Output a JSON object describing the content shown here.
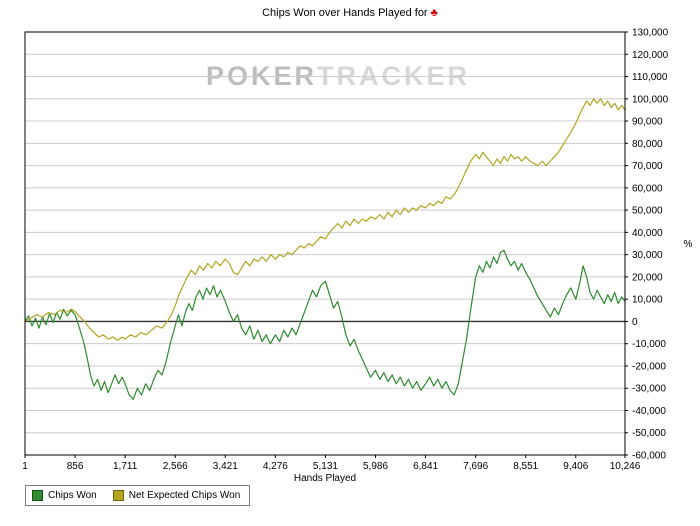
{
  "header": {
    "title": "Chips Won over Hands Played for",
    "suit_symbol": "♣",
    "suit_color": "#cc0000"
  },
  "watermark": {
    "bold": "POKER",
    "light": "TRACKER"
  },
  "x_axis": {
    "label": "Hands Played",
    "ticks": [
      "1",
      "856",
      "1,711",
      "2,566",
      "3,421",
      "4,276",
      "5,131",
      "5,986",
      "6,841",
      "7,696",
      "8,551",
      "9,406",
      "10,246"
    ]
  },
  "y_axis": {
    "unit": "%",
    "min": -60000,
    "max": 130000,
    "step": 10000
  },
  "legend": [
    {
      "label": "Chips Won",
      "color": "#2e8b2e",
      "border": "#145214"
    },
    {
      "label": "Net Expected Chips Won",
      "color": "#b5a41e",
      "border": "#6b6212"
    }
  ],
  "colors": {
    "grid": "#cccccc",
    "zero_line": "#333333",
    "frame": "#000000"
  },
  "chart_data": {
    "type": "line",
    "title": "Chips Won over Hands Played for ♣",
    "xlabel": "Hands Played",
    "ylabel": "%",
    "xlim": [
      1,
      10246
    ],
    "ylim": [
      -60000,
      130000
    ],
    "y_step": 10000,
    "x_ticks": [
      1,
      856,
      1711,
      2566,
      3421,
      4276,
      5131,
      5986,
      6841,
      7696,
      8551,
      9406,
      10246
    ],
    "grid": "horizontal",
    "legend_position": "bottom-left",
    "series": [
      {
        "name": "Chips Won",
        "color": "#2e8b2e",
        "points": [
          [
            1,
            0
          ],
          [
            60,
            2500
          ],
          [
            120,
            -2000
          ],
          [
            180,
            1500
          ],
          [
            240,
            -3000
          ],
          [
            300,
            2000
          ],
          [
            360,
            -1500
          ],
          [
            420,
            3500
          ],
          [
            480,
            -500
          ],
          [
            540,
            4000
          ],
          [
            600,
            1000
          ],
          [
            660,
            5500
          ],
          [
            720,
            2500
          ],
          [
            790,
            5000
          ],
          [
            856,
            3000
          ],
          [
            920,
            -2000
          ],
          [
            1000,
            -9000
          ],
          [
            1060,
            -16000
          ],
          [
            1120,
            -24000
          ],
          [
            1180,
            -29000
          ],
          [
            1240,
            -26000
          ],
          [
            1300,
            -31000
          ],
          [
            1360,
            -27000
          ],
          [
            1420,
            -32000
          ],
          [
            1480,
            -28000
          ],
          [
            1540,
            -24000
          ],
          [
            1600,
            -28000
          ],
          [
            1660,
            -25000
          ],
          [
            1711,
            -28000
          ],
          [
            1780,
            -33000
          ],
          [
            1850,
            -35000
          ],
          [
            1920,
            -30000
          ],
          [
            1990,
            -33000
          ],
          [
            2060,
            -28000
          ],
          [
            2130,
            -31000
          ],
          [
            2200,
            -26000
          ],
          [
            2270,
            -22000
          ],
          [
            2340,
            -24000
          ],
          [
            2410,
            -18000
          ],
          [
            2480,
            -10000
          ],
          [
            2566,
            -2000
          ],
          [
            2620,
            3000
          ],
          [
            2680,
            -2000
          ],
          [
            2740,
            4000
          ],
          [
            2800,
            8000
          ],
          [
            2860,
            5000
          ],
          [
            2920,
            11000
          ],
          [
            2980,
            14000
          ],
          [
            3040,
            10000
          ],
          [
            3100,
            15000
          ],
          [
            3160,
            12000
          ],
          [
            3220,
            16000
          ],
          [
            3280,
            11000
          ],
          [
            3340,
            14000
          ],
          [
            3421,
            9000
          ],
          [
            3490,
            4000
          ],
          [
            3560,
            0
          ],
          [
            3630,
            3000
          ],
          [
            3700,
            -3000
          ],
          [
            3770,
            -6000
          ],
          [
            3840,
            -2000
          ],
          [
            3910,
            -8000
          ],
          [
            3980,
            -4000
          ],
          [
            4050,
            -9000
          ],
          [
            4120,
            -6000
          ],
          [
            4190,
            -10000
          ],
          [
            4276,
            -6000
          ],
          [
            4350,
            -9000
          ],
          [
            4420,
            -4000
          ],
          [
            4490,
            -7000
          ],
          [
            4560,
            -3000
          ],
          [
            4630,
            -6000
          ],
          [
            4700,
            -1000
          ],
          [
            4770,
            4000
          ],
          [
            4840,
            9000
          ],
          [
            4910,
            14000
          ],
          [
            4980,
            11000
          ],
          [
            5050,
            16000
          ],
          [
            5131,
            18000
          ],
          [
            5200,
            12000
          ],
          [
            5270,
            6000
          ],
          [
            5340,
            9000
          ],
          [
            5410,
            2000
          ],
          [
            5480,
            -6000
          ],
          [
            5550,
            -11000
          ],
          [
            5620,
            -8000
          ],
          [
            5690,
            -13000
          ],
          [
            5760,
            -17000
          ],
          [
            5830,
            -21000
          ],
          [
            5900,
            -25000
          ],
          [
            5986,
            -22000
          ],
          [
            6060,
            -26000
          ],
          [
            6130,
            -23000
          ],
          [
            6200,
            -27000
          ],
          [
            6270,
            -24000
          ],
          [
            6340,
            -28000
          ],
          [
            6410,
            -25000
          ],
          [
            6480,
            -29000
          ],
          [
            6550,
            -26000
          ],
          [
            6620,
            -30000
          ],
          [
            6690,
            -27000
          ],
          [
            6760,
            -31000
          ],
          [
            6841,
            -28000
          ],
          [
            6910,
            -25000
          ],
          [
            6980,
            -29000
          ],
          [
            7050,
            -26000
          ],
          [
            7120,
            -30000
          ],
          [
            7190,
            -27000
          ],
          [
            7260,
            -31000
          ],
          [
            7330,
            -33000
          ],
          [
            7400,
            -28000
          ],
          [
            7470,
            -18000
          ],
          [
            7540,
            -8000
          ],
          [
            7610,
            5000
          ],
          [
            7696,
            20000
          ],
          [
            7760,
            25000
          ],
          [
            7820,
            22000
          ],
          [
            7880,
            27000
          ],
          [
            7940,
            24000
          ],
          [
            8000,
            29000
          ],
          [
            8060,
            26000
          ],
          [
            8120,
            31000
          ],
          [
            8180,
            32000
          ],
          [
            8240,
            28000
          ],
          [
            8300,
            25000
          ],
          [
            8360,
            27000
          ],
          [
            8420,
            23000
          ],
          [
            8480,
            26000
          ],
          [
            8551,
            22000
          ],
          [
            8620,
            19000
          ],
          [
            8690,
            15000
          ],
          [
            8760,
            11000
          ],
          [
            8830,
            8000
          ],
          [
            8900,
            5000
          ],
          [
            8970,
            2000
          ],
          [
            9040,
            6000
          ],
          [
            9110,
            3000
          ],
          [
            9180,
            8000
          ],
          [
            9250,
            12000
          ],
          [
            9320,
            15000
          ],
          [
            9406,
            10000
          ],
          [
            9470,
            17000
          ],
          [
            9530,
            25000
          ],
          [
            9590,
            20000
          ],
          [
            9650,
            13000
          ],
          [
            9710,
            10000
          ],
          [
            9770,
            14000
          ],
          [
            9830,
            11000
          ],
          [
            9890,
            8000
          ],
          [
            9950,
            12000
          ],
          [
            10010,
            9000
          ],
          [
            10070,
            13000
          ],
          [
            10130,
            8000
          ],
          [
            10190,
            11000
          ],
          [
            10246,
            9000
          ]
        ]
      },
      {
        "name": "Net Expected Chips Won",
        "color": "#b5a41e",
        "points": [
          [
            1,
            0
          ],
          [
            100,
            1500
          ],
          [
            200,
            3000
          ],
          [
            300,
            2000
          ],
          [
            400,
            4000
          ],
          [
            500,
            3000
          ],
          [
            600,
            5000
          ],
          [
            700,
            4000
          ],
          [
            790,
            5500
          ],
          [
            856,
            4500
          ],
          [
            940,
            2000
          ],
          [
            1020,
            0
          ],
          [
            1100,
            -3000
          ],
          [
            1180,
            -5000
          ],
          [
            1260,
            -7000
          ],
          [
            1340,
            -6000
          ],
          [
            1420,
            -8000
          ],
          [
            1500,
            -7000
          ],
          [
            1580,
            -8500
          ],
          [
            1660,
            -7000
          ],
          [
            1711,
            -8000
          ],
          [
            1800,
            -6000
          ],
          [
            1890,
            -7000
          ],
          [
            1980,
            -5000
          ],
          [
            2070,
            -6000
          ],
          [
            2160,
            -4000
          ],
          [
            2250,
            -2000
          ],
          [
            2340,
            -3000
          ],
          [
            2430,
            0
          ],
          [
            2500,
            3000
          ],
          [
            2566,
            7000
          ],
          [
            2630,
            12000
          ],
          [
            2700,
            16000
          ],
          [
            2770,
            20000
          ],
          [
            2840,
            23000
          ],
          [
            2910,
            21000
          ],
          [
            2980,
            25000
          ],
          [
            3050,
            23000
          ],
          [
            3120,
            26000
          ],
          [
            3190,
            24000
          ],
          [
            3260,
            27000
          ],
          [
            3330,
            25000
          ],
          [
            3421,
            28000
          ],
          [
            3490,
            26000
          ],
          [
            3560,
            22000
          ],
          [
            3630,
            21000
          ],
          [
            3700,
            24000
          ],
          [
            3770,
            27000
          ],
          [
            3840,
            25000
          ],
          [
            3910,
            28000
          ],
          [
            3980,
            27000
          ],
          [
            4050,
            29000
          ],
          [
            4120,
            27000
          ],
          [
            4200,
            30000
          ],
          [
            4276,
            28000
          ],
          [
            4350,
            30000
          ],
          [
            4420,
            29000
          ],
          [
            4490,
            31000
          ],
          [
            4560,
            30000
          ],
          [
            4630,
            32000
          ],
          [
            4700,
            34000
          ],
          [
            4770,
            33000
          ],
          [
            4840,
            35000
          ],
          [
            4910,
            34000
          ],
          [
            4980,
            36000
          ],
          [
            5050,
            38000
          ],
          [
            5131,
            37000
          ],
          [
            5200,
            40000
          ],
          [
            5270,
            42000
          ],
          [
            5340,
            44000
          ],
          [
            5410,
            42000
          ],
          [
            5480,
            45000
          ],
          [
            5550,
            43000
          ],
          [
            5620,
            46000
          ],
          [
            5690,
            44000
          ],
          [
            5760,
            46000
          ],
          [
            5830,
            45000
          ],
          [
            5900,
            47000
          ],
          [
            5986,
            46000
          ],
          [
            6060,
            48000
          ],
          [
            6130,
            46000
          ],
          [
            6200,
            49000
          ],
          [
            6270,
            47000
          ],
          [
            6340,
            50000
          ],
          [
            6410,
            48000
          ],
          [
            6480,
            51000
          ],
          [
            6550,
            49000
          ],
          [
            6620,
            51000
          ],
          [
            6690,
            50000
          ],
          [
            6760,
            52000
          ],
          [
            6841,
            51000
          ],
          [
            6910,
            53000
          ],
          [
            6980,
            52000
          ],
          [
            7050,
            54000
          ],
          [
            7120,
            53000
          ],
          [
            7190,
            56000
          ],
          [
            7260,
            55000
          ],
          [
            7330,
            57000
          ],
          [
            7400,
            60000
          ],
          [
            7470,
            64000
          ],
          [
            7540,
            68000
          ],
          [
            7610,
            72000
          ],
          [
            7696,
            75000
          ],
          [
            7760,
            73000
          ],
          [
            7820,
            76000
          ],
          [
            7880,
            74000
          ],
          [
            7940,
            72000
          ],
          [
            8000,
            70000
          ],
          [
            8060,
            73000
          ],
          [
            8120,
            71000
          ],
          [
            8180,
            74000
          ],
          [
            8240,
            72000
          ],
          [
            8300,
            75000
          ],
          [
            8360,
            73000
          ],
          [
            8420,
            74000
          ],
          [
            8480,
            72000
          ],
          [
            8551,
            74000
          ],
          [
            8620,
            72000
          ],
          [
            8690,
            71000
          ],
          [
            8760,
            70000
          ],
          [
            8830,
            72000
          ],
          [
            8900,
            70000
          ],
          [
            8970,
            72000
          ],
          [
            9040,
            74000
          ],
          [
            9110,
            76000
          ],
          [
            9180,
            79000
          ],
          [
            9250,
            82000
          ],
          [
            9320,
            85000
          ],
          [
            9406,
            89000
          ],
          [
            9470,
            93000
          ],
          [
            9530,
            96000
          ],
          [
            9590,
            99000
          ],
          [
            9650,
            97000
          ],
          [
            9710,
            100000
          ],
          [
            9770,
            98000
          ],
          [
            9830,
            100000
          ],
          [
            9890,
            97000
          ],
          [
            9950,
            99000
          ],
          [
            10010,
            96000
          ],
          [
            10070,
            98000
          ],
          [
            10130,
            95000
          ],
          [
            10190,
            97000
          ],
          [
            10246,
            95000
          ]
        ]
      }
    ]
  }
}
